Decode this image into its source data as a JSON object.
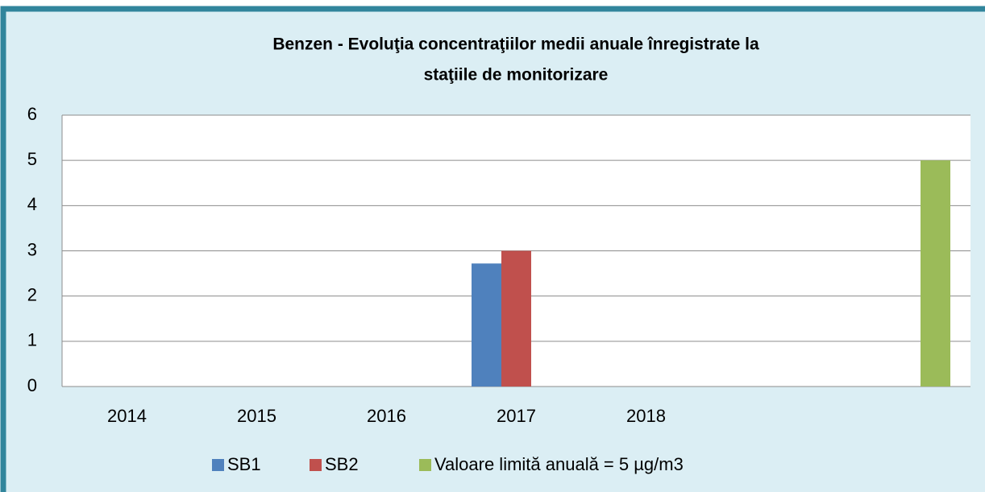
{
  "chart_data": {
    "type": "bar",
    "title": [
      "Benzen - Evoluţia concentraţiilor medii anuale înregistrate la",
      "staţiile de monitorizare"
    ],
    "categories": [
      "2014",
      "2015",
      "2016",
      "2017",
      "2018",
      null,
      null
    ],
    "series": [
      {
        "name": "SB1",
        "color": "#4f81bd",
        "values": [
          null,
          null,
          null,
          2.72,
          null,
          null,
          null
        ]
      },
      {
        "name": "SB2",
        "color": "#c0504d",
        "values": [
          null,
          null,
          null,
          3.0,
          null,
          null,
          null
        ]
      },
      {
        "name": "Valoare limită anuală = 5 µg/m3",
        "color": "#9bbb59",
        "values": [
          null,
          null,
          null,
          null,
          null,
          null,
          5
        ]
      }
    ],
    "ylim": [
      0,
      6
    ],
    "yticks": [
      0,
      1,
      2,
      3,
      4,
      5,
      6
    ],
    "grid": true,
    "legend": "bottom"
  }
}
